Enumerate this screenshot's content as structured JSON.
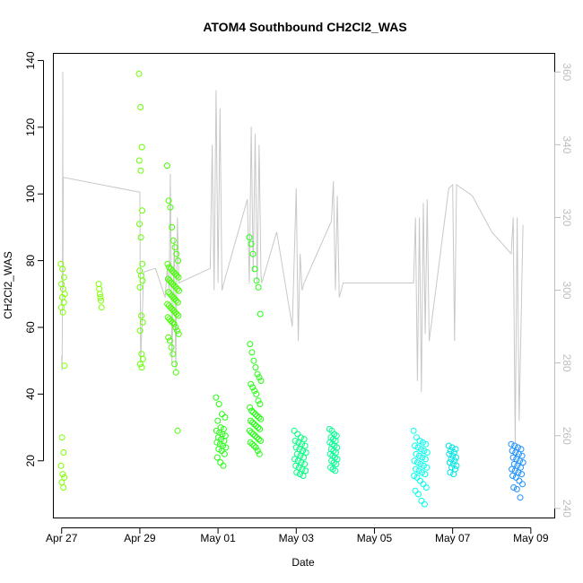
{
  "chart_data": {
    "type": "scatter",
    "title": "ATOM4 Southbound CH2Cl2_WAS",
    "xlabel": "Date",
    "ylabel": "CH2Cl2_WAS",
    "xlim": [
      -0.2,
      12.6
    ],
    "ylim": [
      3,
      142
    ],
    "x_unit": "days since Apr 27",
    "x_ticks": [
      {
        "value": 0,
        "label": "Apr 27"
      },
      {
        "value": 2,
        "label": "Apr 29"
      },
      {
        "value": 4,
        "label": "May 01"
      },
      {
        "value": 6,
        "label": "May 03"
      },
      {
        "value": 8,
        "label": "May 05"
      },
      {
        "value": 10,
        "label": "May 07"
      },
      {
        "value": 12,
        "label": "May 09"
      }
    ],
    "y_ticks": [
      20,
      40,
      60,
      80,
      100,
      120,
      140
    ],
    "y2_ticks": [
      240,
      260,
      280,
      300,
      320,
      340,
      360
    ],
    "y2lim": [
      237.5,
      365
    ],
    "grid": false,
    "point_groups": [
      {
        "color": "#7fff00",
        "x_range": [
          -0.02,
          0.08
        ],
        "values": [
          79,
          77.5,
          75,
          73,
          71.5,
          70,
          69,
          67.5,
          66,
          64.5,
          48.5,
          27,
          22.5,
          18.5,
          16,
          15,
          13.5,
          12
        ]
      },
      {
        "color": "#7fff00",
        "x_range": [
          0.95,
          1.02
        ],
        "values": [
          73,
          71.5,
          70,
          69,
          68,
          66
        ]
      },
      {
        "color": "#66ff00",
        "x_range": [
          1.98,
          2.08
        ],
        "values": [
          136,
          126,
          114,
          110,
          107,
          95,
          91,
          87,
          79,
          77,
          75.5,
          74,
          72,
          63.5,
          61.5,
          59,
          52,
          50.5,
          49,
          48
        ]
      },
      {
        "color": "#44ff00",
        "x_range": [
          2.7,
          3.0
        ],
        "values": [
          108.5,
          98,
          96,
          90,
          86,
          84,
          82,
          80,
          79,
          78,
          77.5,
          77,
          76.5,
          76,
          75.5,
          75,
          74.5,
          74,
          73.5,
          73,
          72.5,
          72,
          71.5,
          71,
          70.5,
          70,
          69.5,
          69,
          68.5,
          68,
          67.5,
          67,
          66.5,
          66,
          65.5,
          65,
          64.5,
          64,
          63.5,
          63,
          62.5,
          62,
          61.5,
          61,
          60,
          59,
          58,
          57,
          56,
          54,
          52,
          49,
          46.5,
          29
        ]
      },
      {
        "color": "#22ff10",
        "x_range": [
          3.95,
          4.2
        ],
        "values": [
          39,
          37,
          34,
          33,
          32,
          30,
          29.5,
          29,
          28.5,
          28,
          27.5,
          27,
          26.5,
          26,
          25.5,
          25,
          24.5,
          24,
          23.5,
          23,
          22,
          21,
          19.5,
          18.5
        ]
      },
      {
        "color": "#22ff10",
        "x_range": [
          4.8,
          5.1
        ],
        "values": [
          87,
          85,
          82,
          77.5,
          74,
          72,
          64,
          55,
          52.5,
          50,
          48,
          46,
          45,
          44,
          43,
          42,
          41,
          40,
          38,
          37,
          36,
          35,
          34.5,
          34,
          33.5,
          33,
          32.5,
          32,
          31.5,
          31,
          30.5,
          30,
          29.5,
          29,
          28.5,
          28,
          27.5,
          27,
          26.5,
          26,
          25.5,
          25,
          24.5,
          24,
          23,
          22
        ]
      },
      {
        "color": "#00ff7f",
        "x_range": [
          5.95,
          6.25
        ],
        "values": [
          29,
          28,
          27,
          26.5,
          26,
          25.5,
          25,
          24.5,
          24,
          23.5,
          23,
          22.5,
          22,
          21.5,
          21,
          20.5,
          20,
          19.5,
          19,
          18.5,
          18,
          17.5,
          17,
          16.5,
          16,
          15.5
        ]
      },
      {
        "color": "#00ff90",
        "x_range": [
          6.85,
          7.05
        ],
        "values": [
          29.5,
          29,
          28,
          27.5,
          27,
          26.5,
          26,
          25.5,
          25,
          24.5,
          24,
          23.5,
          23,
          22.5,
          22,
          21.5,
          21,
          20.5,
          20,
          19.5,
          19,
          18,
          17.5,
          17
        ]
      },
      {
        "color": "#00ffee",
        "x_range": [
          9.0,
          9.35
        ],
        "values": [
          29,
          27,
          26,
          25.5,
          25,
          24.5,
          24,
          23.5,
          23,
          22.5,
          22,
          21.5,
          21,
          20.5,
          20,
          19.5,
          19,
          18.5,
          18,
          17.5,
          17,
          16.5,
          16,
          15.5,
          15,
          14,
          13,
          12,
          11,
          10,
          8,
          7
        ]
      },
      {
        "color": "#00e5e5",
        "x_range": [
          9.9,
          10.1
        ],
        "values": [
          24.5,
          24,
          23.5,
          23,
          22.5,
          22,
          21.5,
          21,
          20.5,
          20,
          19.5,
          19,
          18.5,
          18,
          17.5,
          16.5,
          16
        ]
      },
      {
        "color": "#1e90ff",
        "x_range": [
          11.5,
          11.8
        ],
        "values": [
          25,
          24.5,
          24,
          23.5,
          23,
          22.5,
          22,
          21.5,
          21,
          20.5,
          20,
          19.5,
          19,
          18.5,
          18,
          17.5,
          17,
          16.5,
          16,
          15.5,
          15,
          14,
          13,
          12,
          11.5,
          9
        ]
      }
    ],
    "trace": {
      "color": "#c8c8c8",
      "axis": "right",
      "path": [
        [
          0.0,
          282
        ],
        [
          0.01,
          278
        ],
        [
          0.02,
          295
        ],
        [
          0.03,
          360
        ],
        [
          0.035,
          300
        ],
        [
          0.04,
          331
        ],
        [
          0.06,
          331
        ],
        [
          1.98,
          327
        ],
        [
          2.0,
          327
        ],
        [
          2.02,
          280
        ],
        [
          2.1,
          305
        ],
        [
          2.4,
          306
        ],
        [
          2.65,
          298
        ],
        [
          2.7,
          306
        ],
        [
          2.75,
          300
        ],
        [
          2.78,
          332
        ],
        [
          2.82,
          280
        ],
        [
          2.88,
          314
        ],
        [
          2.92,
          278
        ],
        [
          2.96,
          320
        ],
        [
          3.0,
          302
        ],
        [
          3.8,
          306
        ],
        [
          3.85,
          340
        ],
        [
          3.9,
          300
        ],
        [
          3.95,
          355
        ],
        [
          4.0,
          302
        ],
        [
          4.05,
          350
        ],
        [
          4.1,
          300
        ],
        [
          4.2,
          304
        ],
        [
          4.75,
          325
        ],
        [
          4.8,
          302
        ],
        [
          4.85,
          345
        ],
        [
          4.9,
          305
        ],
        [
          4.95,
          343
        ],
        [
          5.0,
          302
        ],
        [
          5.05,
          340
        ],
        [
          5.1,
          304
        ],
        [
          5.12,
          302
        ],
        [
          5.5,
          316
        ],
        [
          5.9,
          290
        ],
        [
          6.0,
          328
        ],
        [
          6.05,
          286
        ],
        [
          6.1,
          310
        ],
        [
          6.15,
          300
        ],
        [
          6.2,
          302
        ],
        [
          6.9,
          319
        ],
        [
          6.95,
          330
        ],
        [
          7.0,
          300
        ],
        [
          7.05,
          326
        ],
        [
          7.1,
          298
        ],
        [
          7.2,
          302
        ],
        [
          9.0,
          302
        ],
        [
          9.05,
          320
        ],
        [
          9.1,
          275
        ],
        [
          9.15,
          320
        ],
        [
          9.2,
          272
        ],
        [
          9.25,
          324
        ],
        [
          9.3,
          288
        ],
        [
          9.35,
          325
        ],
        [
          9.4,
          286
        ],
        [
          9.9,
          328
        ],
        [
          10.0,
          329
        ],
        [
          10.05,
          286
        ],
        [
          10.1,
          329
        ],
        [
          10.5,
          326
        ],
        [
          11.0,
          316
        ],
        [
          11.5,
          310
        ],
        [
          11.55,
          320
        ],
        [
          11.6,
          258
        ],
        [
          11.65,
          320
        ],
        [
          11.7,
          264
        ],
        [
          11.8,
          318
        ]
      ]
    }
  }
}
